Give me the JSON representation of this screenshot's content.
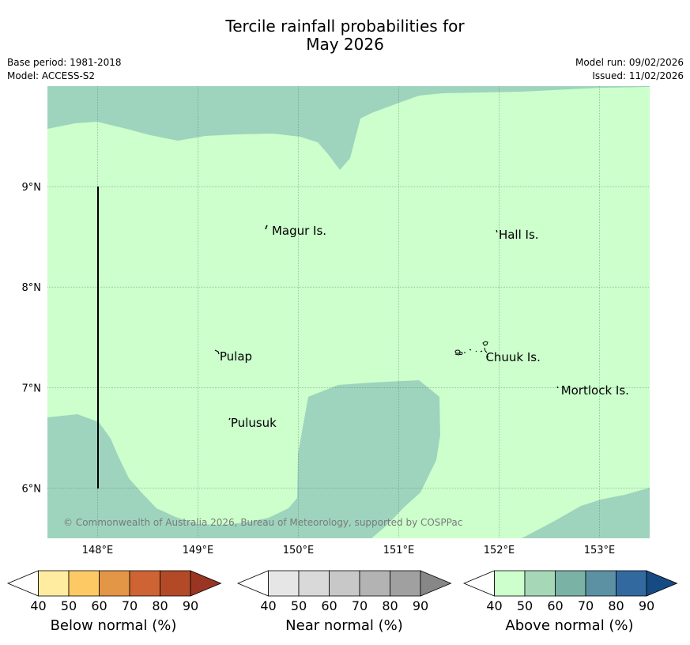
{
  "title": {
    "line1": "Tercile rainfall probabilities for",
    "line2": "May 2026"
  },
  "meta": {
    "base_period": "Base period: 1981-2018",
    "model": "Model: ACCESS-S2",
    "model_run": "Model run: 09/02/2026",
    "issued": "Issued: 11/02/2026"
  },
  "map": {
    "lon_range": [
      147.5,
      153.5
    ],
    "lat_range": [
      5.5,
      10.0
    ],
    "lon_ticks": [
      {
        "value": 148,
        "label": "148°E"
      },
      {
        "value": 149,
        "label": "149°E"
      },
      {
        "value": 150,
        "label": "150°E"
      },
      {
        "value": 151,
        "label": "151°E"
      },
      {
        "value": 152,
        "label": "152°E"
      },
      {
        "value": 153,
        "label": "153°E"
      }
    ],
    "lat_ticks": [
      {
        "value": 9,
        "label": "9°N"
      },
      {
        "value": 8,
        "label": "8°N"
      },
      {
        "value": 7,
        "label": "7°N"
      },
      {
        "value": 6,
        "label": "6°N"
      }
    ],
    "base_category": "Above normal 40-50%",
    "places": [
      {
        "name": "Magur Is.",
        "lon": 149.72,
        "lat": 8.56
      },
      {
        "name": "Hall Is.",
        "lon": 151.98,
        "lat": 8.52
      },
      {
        "name": "Pulap",
        "lon": 149.2,
        "lat": 7.31
      },
      {
        "name": "Chuuk Is.",
        "lon": 151.85,
        "lat": 7.3
      },
      {
        "name": "Mortlock Is.",
        "lon": 152.6,
        "lat": 6.97
      },
      {
        "name": "Pulusuk",
        "lon": 149.31,
        "lat": 6.65
      }
    ],
    "copyright": "© Commonwealth of Australia 2026, Bureau of Meteorology, supported by COSPPac",
    "colors": {
      "above_40_50": "#ccffcc",
      "above_50_60": "#9ed4bd",
      "grid": "#4a6a5a",
      "border_line": "#000000"
    }
  },
  "colorbars": [
    {
      "label": "Below normal (%)",
      "ticks": [
        "40",
        "50",
        "60",
        "70",
        "80",
        "90"
      ],
      "colors": [
        "#ffffff",
        "#ffeca0",
        "#fdc965",
        "#e39645",
        "#ce6433",
        "#b34a27",
        "#9a3423"
      ]
    },
    {
      "label": "Near normal (%)",
      "ticks": [
        "40",
        "50",
        "60",
        "70",
        "80",
        "90"
      ],
      "colors": [
        "#ffffff",
        "#e6e6e6",
        "#d9d9d9",
        "#c8c8c8",
        "#b3b3b3",
        "#a0a0a0",
        "#878787"
      ]
    },
    {
      "label": "Above normal (%)",
      "ticks": [
        "40",
        "50",
        "60",
        "70",
        "80",
        "90"
      ],
      "colors": [
        "#ffffff",
        "#ccffcc",
        "#a6d8b8",
        "#7ab3a6",
        "#5b91a3",
        "#326aa0",
        "#164a82"
      ]
    }
  ]
}
